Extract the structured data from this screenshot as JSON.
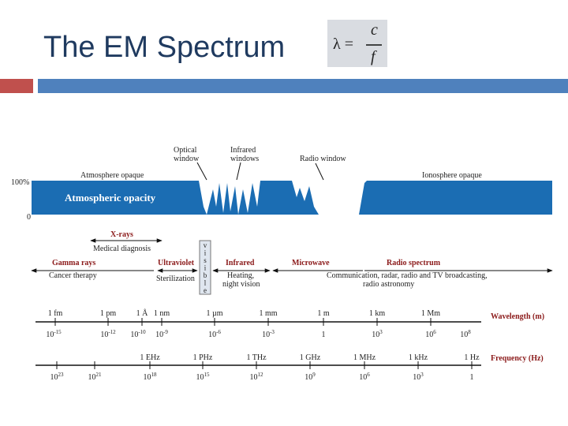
{
  "title": "The EM Spectrum",
  "formula": {
    "lhs": "λ =",
    "numerator": "c",
    "denominator": "f"
  },
  "opacity": {
    "optical_window": [
      "Optical",
      "window"
    ],
    "infrared_windows": [
      "Infrared",
      "windows"
    ],
    "radio_window": "Radio window",
    "atmosphere_opaque": "Atmosphere opaque",
    "ionosphere_opaque": "Ionosphere opaque",
    "y_top": "100%",
    "y_bottom": "0",
    "label": "Atmospheric opacity"
  },
  "bands": {
    "xrays": "X-rays",
    "medical": "Medical diagnosis",
    "gamma": "Gamma rays",
    "cancer": "Cancer therapy",
    "uv": "Ultraviolet",
    "sterilization": "Sterilization",
    "visible": [
      "v",
      "i",
      "s",
      "i",
      "b",
      "l",
      "e"
    ],
    "infrared": "Infrared",
    "heating": [
      "Heating,",
      "night vision"
    ],
    "microwave": "Microwave",
    "radio": "Radio spectrum",
    "communication": [
      "Communication, radar, radio and TV broadcasting,",
      "radio astronomy"
    ]
  },
  "wavelength": {
    "title": "Wavelength (m)",
    "units": [
      "1 fm",
      "1 pm",
      "1 Å",
      "1 nm",
      "1 µm",
      "1 mm",
      "1 m",
      "1 km",
      "1 Mm"
    ],
    "powers": [
      {
        "base": "10",
        "exp": "-15"
      },
      {
        "base": "10",
        "exp": "-12"
      },
      {
        "base": "10",
        "exp": "-10"
      },
      {
        "base": "10",
        "exp": "-9"
      },
      {
        "base": "10",
        "exp": "-6"
      },
      {
        "base": "10",
        "exp": "-3"
      },
      {
        "base": "1"
      },
      {
        "base": "10",
        "exp": "3"
      },
      {
        "base": "10",
        "exp": "6"
      },
      {
        "base": "10",
        "exp": "8"
      }
    ]
  },
  "frequency": {
    "title": "Frequency (Hz)",
    "units": [
      "1 EHz",
      "1 PHz",
      "1 THz",
      "1 GHz",
      "1 MHz",
      "1 kHz",
      "1 Hz"
    ],
    "powers": [
      {
        "base": "10",
        "exp": "23"
      },
      {
        "base": "10",
        "exp": "21"
      },
      {
        "base": "10",
        "exp": "18"
      },
      {
        "base": "10",
        "exp": "15"
      },
      {
        "base": "10",
        "exp": "12"
      },
      {
        "base": "10",
        "exp": "9"
      },
      {
        "base": "10",
        "exp": "6"
      },
      {
        "base": "10",
        "exp": "3"
      },
      {
        "base": "1"
      }
    ]
  }
}
